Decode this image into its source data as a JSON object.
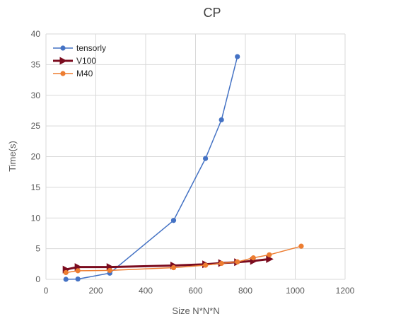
{
  "chart_data": {
    "type": "line",
    "title": "CP",
    "xlabel": "Size N*N*N",
    "ylabel": "Time(s)",
    "xlim": [
      0,
      1200
    ],
    "ylim": [
      0,
      40
    ],
    "xticks": [
      0,
      200,
      400,
      600,
      800,
      1000,
      1200
    ],
    "yticks": [
      0,
      5,
      10,
      15,
      20,
      25,
      30,
      35,
      40
    ],
    "grid": true,
    "legend_position": "top-left",
    "series": [
      {
        "name": "tensorly",
        "color": "#4472c4",
        "marker": "circle",
        "points": [
          [
            80,
            0.0
          ],
          [
            128,
            0.05
          ],
          [
            256,
            1.0
          ],
          [
            512,
            9.6
          ],
          [
            640,
            19.7
          ],
          [
            704,
            26.0
          ],
          [
            768,
            36.3
          ]
        ]
      },
      {
        "name": "V100",
        "color": "#7b0c1f",
        "marker": "triangle-right",
        "points": [
          [
            80,
            1.6
          ],
          [
            128,
            2.0
          ],
          [
            256,
            2.0
          ],
          [
            512,
            2.25
          ],
          [
            640,
            2.45
          ],
          [
            704,
            2.65
          ],
          [
            768,
            2.8
          ],
          [
            832,
            3.0
          ],
          [
            896,
            3.3
          ]
        ]
      },
      {
        "name": "M40",
        "color": "#ed7d31",
        "marker": "circle",
        "points": [
          [
            80,
            1.1
          ],
          [
            128,
            1.4
          ],
          [
            256,
            1.45
          ],
          [
            512,
            1.9
          ],
          [
            640,
            2.3
          ],
          [
            704,
            2.6
          ],
          [
            768,
            2.85
          ],
          [
            832,
            3.5
          ],
          [
            896,
            4.0
          ],
          [
            1024,
            5.4
          ]
        ]
      }
    ]
  }
}
